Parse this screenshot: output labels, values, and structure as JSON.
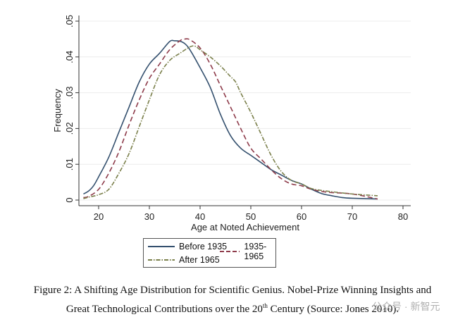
{
  "chart_data": {
    "type": "line",
    "title": "",
    "xlabel": "Age at Noted Achievement",
    "ylabel": "Frequency",
    "xlim": [
      16,
      81
    ],
    "ylim": [
      0,
      0.05
    ],
    "xticks": [
      20,
      30,
      40,
      50,
      60,
      70,
      80
    ],
    "xtick_labels": [
      "20",
      "30",
      "40",
      "50",
      "60",
      "70",
      "80"
    ],
    "yticks": [
      0,
      0.01,
      0.02,
      0.03,
      0.04,
      0.05
    ],
    "ytick_labels": [
      "0",
      ".01",
      ".02",
      ".03",
      ".04",
      ".05"
    ],
    "grid": "horizontal",
    "legend_position": "bottom",
    "series": [
      {
        "name": "Before 1935",
        "color": "#34506e",
        "style": "solid",
        "x": [
          17,
          18,
          19,
          20,
          22,
          24,
          26,
          28,
          30,
          32,
          34,
          35,
          36,
          37,
          38,
          40,
          42,
          44,
          46,
          48,
          50,
          52,
          54,
          56,
          58,
          60,
          62,
          64,
          66,
          68,
          70,
          75
        ],
        "y": [
          0.0017,
          0.0025,
          0.004,
          0.0065,
          0.012,
          0.019,
          0.026,
          0.033,
          0.038,
          0.041,
          0.0443,
          0.0445,
          0.0444,
          0.0437,
          0.042,
          0.037,
          0.0315,
          0.024,
          0.018,
          0.0145,
          0.0125,
          0.0105,
          0.0085,
          0.007,
          0.0055,
          0.0045,
          0.003,
          0.0018,
          0.0012,
          0.0007,
          0.0005,
          0.0003
        ]
      },
      {
        "name": "1935-1965",
        "color": "#8e3b4a",
        "style": "dashed",
        "x": [
          17,
          18,
          20,
          22,
          24,
          26,
          28,
          30,
          32,
          34,
          36,
          37,
          38,
          40,
          42,
          44,
          46,
          48,
          50,
          52,
          54,
          56,
          58,
          60,
          62,
          65,
          70,
          75
        ],
        "y": [
          0.0007,
          0.001,
          0.003,
          0.0075,
          0.0135,
          0.021,
          0.028,
          0.034,
          0.038,
          0.042,
          0.0445,
          0.045,
          0.0448,
          0.0425,
          0.038,
          0.032,
          0.026,
          0.02,
          0.0145,
          0.0115,
          0.0085,
          0.006,
          0.0045,
          0.004,
          0.003,
          0.0022,
          0.0017,
          0.0003
        ]
      },
      {
        "name": "After 1965",
        "color": "#7a7f4a",
        "style": "dashdot",
        "x": [
          17,
          18,
          20,
          22,
          24,
          26,
          28,
          30,
          32,
          34,
          36,
          38,
          39,
          40,
          42,
          44,
          46,
          47,
          48,
          50,
          52,
          54,
          56,
          58,
          60,
          62,
          65,
          70,
          75
        ],
        "y": [
          0.0004,
          0.0008,
          0.0015,
          0.003,
          0.0075,
          0.013,
          0.0205,
          0.028,
          0.035,
          0.039,
          0.041,
          0.0428,
          0.043,
          0.042,
          0.04,
          0.0375,
          0.0345,
          0.033,
          0.03,
          0.0245,
          0.0185,
          0.0125,
          0.008,
          0.0055,
          0.0045,
          0.0032,
          0.0025,
          0.0017,
          0.0012
        ]
      }
    ]
  },
  "caption": {
    "line1": "Figure 2:  A Shifting Age Distribution for Scientific Genius.  Nobel-Prize Winning Insights and",
    "line2_pre": "Great Technological Contributions over the 20",
    "line2_sup": "th",
    "line2_post": " Century (Source: Jones 2010)."
  },
  "watermark": "公众号 · 新智元"
}
